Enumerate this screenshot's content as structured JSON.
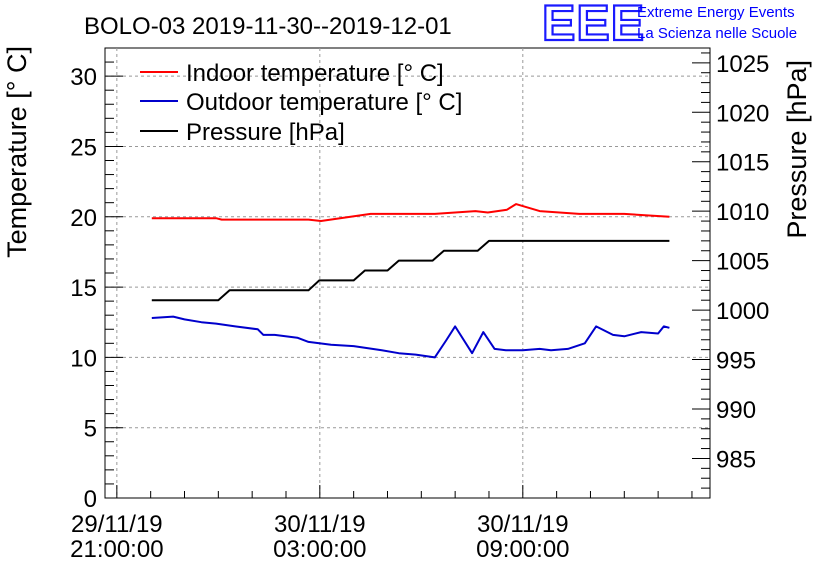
{
  "chart_data": {
    "type": "line",
    "title": "BOLO-03 2019-11-30--2019-12-01",
    "ylabel": "Temperature [° C]",
    "y2label": "Pressure [hPa]",
    "ylim": [
      0,
      32
    ],
    "y2lim": [
      981,
      1026.5
    ],
    "xlim": [
      "2019-11-29 20:39",
      "2019-11-30 14:32"
    ],
    "yticks": [
      0,
      5,
      10,
      15,
      20,
      25,
      30
    ],
    "y2ticks": [
      985,
      990,
      995,
      1000,
      1005,
      1010,
      1015,
      1020,
      1025
    ],
    "xticks": [
      {
        "x": "2019-11-29 21:00",
        "date": "29/11/19",
        "time": "21:00:00"
      },
      {
        "x": "2019-11-30 03:00",
        "date": "30/11/19",
        "time": "03:00:00"
      },
      {
        "x": "2019-11-30 09:00",
        "date": "30/11/19",
        "time": "09:00:00"
      }
    ],
    "grid": true,
    "legend_position": "top-left",
    "series": [
      {
        "name": "Indoor temperature [° C]",
        "color": "#ff0000",
        "axis": "left",
        "x": [
          "2019-11-29 22:02",
          "2019-11-29 23:56",
          "2019-11-30 00:06",
          "2019-11-30 02:40",
          "2019-11-30 03:02",
          "2019-11-30 04:30",
          "2019-11-30 06:24",
          "2019-11-30 07:36",
          "2019-11-30 07:58",
          "2019-11-30 08:32",
          "2019-11-30 08:48",
          "2019-11-30 09:30",
          "2019-11-30 10:40",
          "2019-11-30 12:00",
          "2019-11-30 13:20"
        ],
        "values": [
          19.9,
          19.9,
          19.8,
          19.8,
          19.7,
          20.2,
          20.2,
          20.4,
          20.3,
          20.5,
          20.9,
          20.4,
          20.2,
          20.2,
          20.0
        ]
      },
      {
        "name": "Outdoor temperature [° C]",
        "color": "#0000cc",
        "axis": "left",
        "x": [
          "2019-11-29 22:02",
          "2019-11-29 22:40",
          "2019-11-29 23:00",
          "2019-11-29 23:30",
          "2019-11-29 23:56",
          "2019-11-30 00:30",
          "2019-11-30 01:10",
          "2019-11-30 01:20",
          "2019-11-30 01:40",
          "2019-11-30 02:20",
          "2019-11-30 02:40",
          "2019-11-30 03:20",
          "2019-11-30 04:00",
          "2019-11-30 04:50",
          "2019-11-30 05:20",
          "2019-11-30 05:50",
          "2019-11-30 06:24",
          "2019-11-30 06:44",
          "2019-11-30 07:00",
          "2019-11-30 07:30",
          "2019-11-30 07:50",
          "2019-11-30 08:10",
          "2019-11-30 08:30",
          "2019-11-30 09:00",
          "2019-11-30 09:30",
          "2019-11-30 09:50",
          "2019-11-30 10:20",
          "2019-11-30 10:50",
          "2019-11-30 11:10",
          "2019-11-30 11:40",
          "2019-11-30 12:00",
          "2019-11-30 12:30",
          "2019-11-30 13:00",
          "2019-11-30 13:10",
          "2019-11-30 13:20"
        ],
        "values": [
          12.8,
          12.9,
          12.7,
          12.5,
          12.4,
          12.2,
          12.0,
          11.6,
          11.6,
          11.4,
          11.1,
          10.9,
          10.8,
          10.5,
          10.3,
          10.2,
          10.0,
          11.2,
          12.2,
          10.3,
          11.8,
          10.6,
          10.5,
          10.5,
          10.6,
          10.5,
          10.6,
          11.0,
          12.2,
          11.6,
          11.5,
          11.8,
          11.7,
          12.2,
          12.1
        ]
      },
      {
        "name": "Pressure [hPa]",
        "color": "#000000",
        "axis": "right",
        "x": [
          "2019-11-29 22:02",
          "2019-11-30 00:00",
          "2019-11-30 00:20",
          "2019-11-30 01:20",
          "2019-11-30 01:40",
          "2019-11-30 02:40",
          "2019-11-30 02:59",
          "2019-11-30 03:10",
          "2019-11-30 04:00",
          "2019-11-30 04:20",
          "2019-11-30 05:00",
          "2019-11-30 05:20",
          "2019-11-30 06:20",
          "2019-11-30 06:40",
          "2019-11-30 07:40",
          "2019-11-30 08:00",
          "2019-11-30 08:50",
          "2019-11-30 09:10",
          "2019-11-30 13:20"
        ],
        "values": [
          1001,
          1001,
          1002,
          1002,
          1002,
          1002,
          1003,
          1003,
          1003,
          1004,
          1004,
          1005,
          1005,
          1006,
          1006,
          1007,
          1007,
          1007,
          1007
        ]
      }
    ]
  },
  "logo": {
    "mark": "EEE",
    "line1": "Extreme Energy Events",
    "line2": "La Scienza nelle Scuole"
  }
}
